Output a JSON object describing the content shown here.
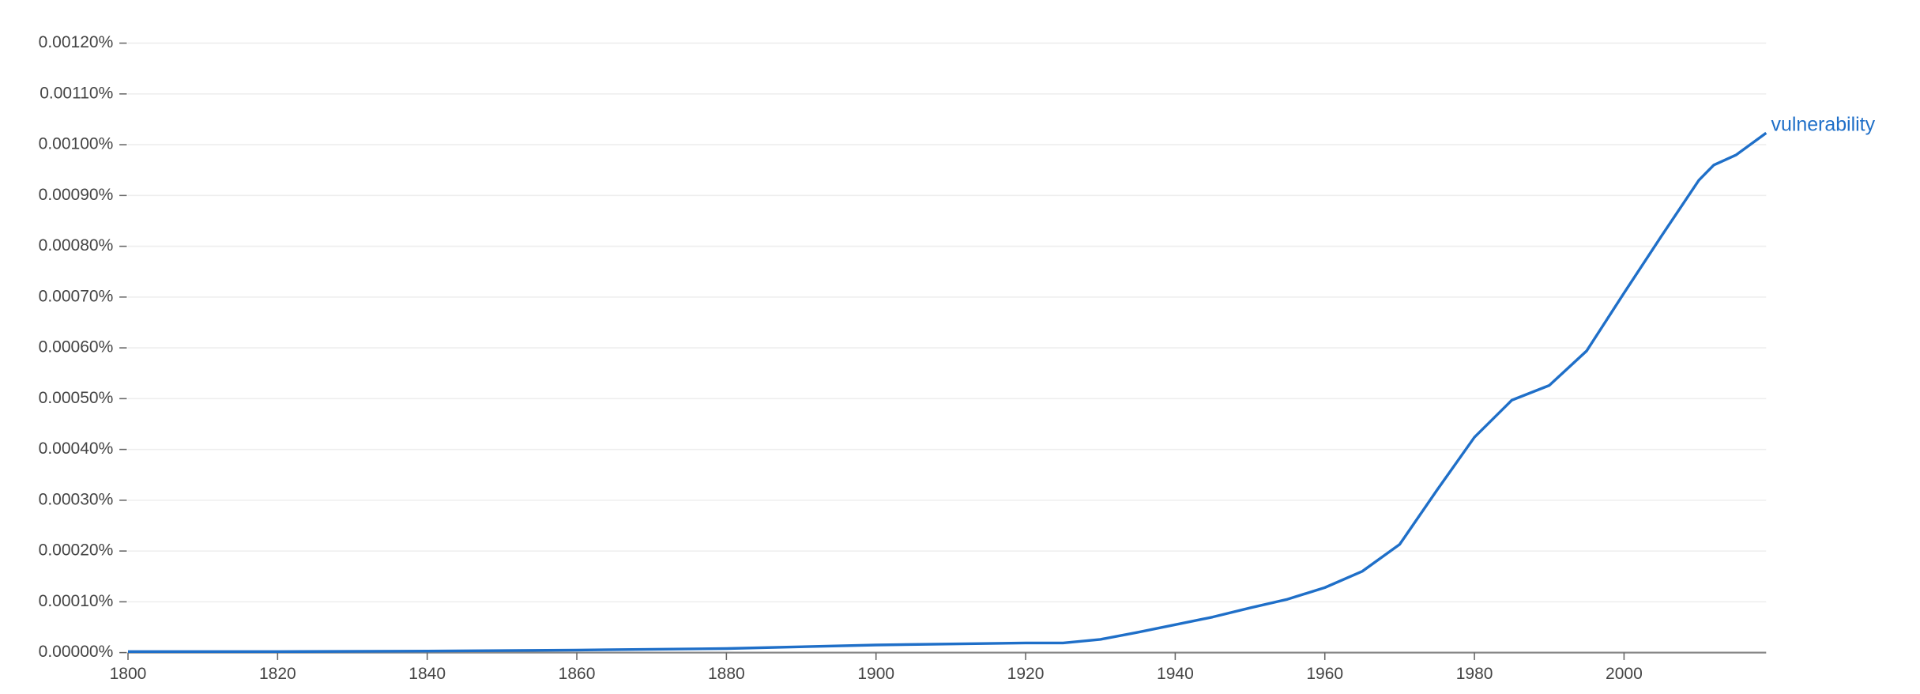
{
  "chart_data": {
    "type": "line",
    "x": [
      1800,
      1820,
      1840,
      1860,
      1880,
      1900,
      1920,
      1925,
      1930,
      1935,
      1940,
      1945,
      1950,
      1955,
      1960,
      1965,
      1970,
      1975,
      1980,
      1985,
      1990,
      1995,
      2000,
      2005,
      2010,
      2012,
      2015,
      2019
    ],
    "series": [
      {
        "name": "vulnerability",
        "color": "#1f6fc8",
        "values": [
          2e-06,
          2e-06,
          3e-06,
          5e-06,
          8e-06,
          1.5e-05,
          1.9e-05,
          1.9e-05,
          2.6e-05,
          4e-05,
          5.5e-05,
          7e-05,
          8.8e-05,
          0.000105,
          0.000128,
          0.00016,
          0.000213,
          0.00032,
          0.000424,
          0.000497,
          0.000526,
          0.000594,
          0.000708,
          0.00082,
          0.00093,
          0.00096,
          0.00098,
          0.001023
        ]
      }
    ],
    "xlim": [
      1800,
      2019
    ],
    "xticks": [
      1800,
      1820,
      1840,
      1860,
      1880,
      1900,
      1920,
      1940,
      1960,
      1980,
      2000
    ],
    "ylim": [
      0,
      0.0012
    ],
    "yticks": [
      {
        "value": 0,
        "label": "0.00000%"
      },
      {
        "value": 0.0001,
        "label": "0.00010%"
      },
      {
        "value": 0.0002,
        "label": "0.00020%"
      },
      {
        "value": 0.0003,
        "label": "0.00030%"
      },
      {
        "value": 0.0004,
        "label": "0.00040%"
      },
      {
        "value": 0.0005,
        "label": "0.00050%"
      },
      {
        "value": 0.0006,
        "label": "0.00060%"
      },
      {
        "value": 0.0007,
        "label": "0.00070%"
      },
      {
        "value": 0.0008,
        "label": "0.00080%"
      },
      {
        "value": 0.0009,
        "label": "0.00090%"
      },
      {
        "value": 0.001,
        "label": "0.00100%"
      },
      {
        "value": 0.0011,
        "label": "0.00110%"
      },
      {
        "value": 0.0012,
        "label": "0.00120%"
      }
    ],
    "grid": true
  }
}
